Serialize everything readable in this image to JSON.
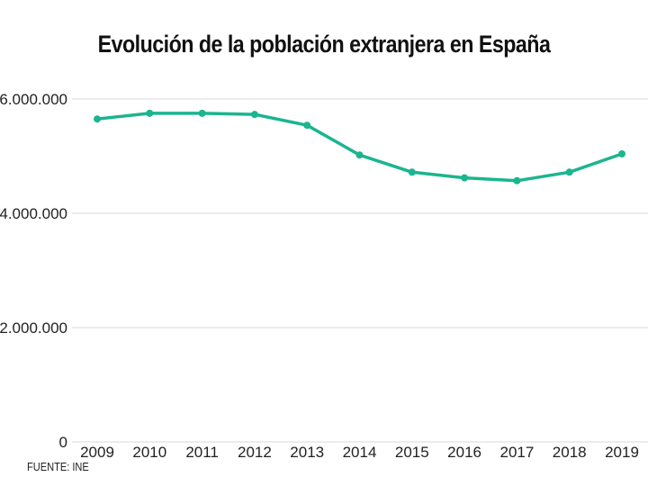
{
  "chart_data": {
    "type": "line",
    "title": "Evolución de la población extranjera en España",
    "xlabel": "",
    "ylabel": "",
    "categories": [
      "2009",
      "2010",
      "2011",
      "2012",
      "2013",
      "2014",
      "2015",
      "2016",
      "2017",
      "2018",
      "2019"
    ],
    "series": [
      {
        "name": "Población extranjera",
        "color": "#1bb58f",
        "values": [
          5650000,
          5750000,
          5750000,
          5730000,
          5540000,
          5020000,
          4720000,
          4620000,
          4570000,
          4720000,
          5040000
        ]
      }
    ],
    "ylim": [
      0,
      6000000
    ],
    "yticks": [
      0,
      2000000,
      4000000,
      6000000
    ],
    "ytick_labels": [
      "0",
      "2.000.000",
      "4.000.000",
      "6.000.000"
    ],
    "grid": true,
    "legend": "none",
    "source": "FUENTE: INE"
  }
}
